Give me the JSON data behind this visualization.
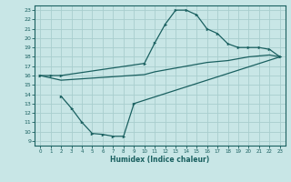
{
  "title": "",
  "xlabel": "Humidex (Indice chaleur)",
  "bg_color": "#c8e6e6",
  "grid_color": "#a8cece",
  "line_color": "#1a6060",
  "xlim": [
    -0.5,
    23.5
  ],
  "ylim": [
    8.5,
    23.5
  ],
  "xticks": [
    0,
    1,
    2,
    3,
    4,
    5,
    6,
    7,
    8,
    9,
    10,
    11,
    12,
    13,
    14,
    15,
    16,
    17,
    18,
    19,
    20,
    21,
    22,
    23
  ],
  "yticks": [
    9,
    10,
    11,
    12,
    13,
    14,
    15,
    16,
    17,
    18,
    19,
    20,
    21,
    22,
    23
  ],
  "curve_top_x": [
    0,
    1,
    2,
    10,
    11,
    12,
    13,
    14,
    15,
    16,
    17,
    18,
    19,
    20,
    21,
    22,
    23
  ],
  "curve_top_y": [
    16.0,
    16.0,
    16.0,
    17.3,
    19.5,
    21.5,
    23.0,
    23.0,
    22.5,
    21.0,
    20.5,
    19.4,
    19.0,
    19.0,
    19.0,
    18.8,
    18.0
  ],
  "curve_bot_x": [
    2,
    3,
    4,
    5,
    6,
    7,
    8,
    9,
    23
  ],
  "curve_bot_y": [
    13.8,
    12.5,
    11.0,
    9.8,
    9.7,
    9.5,
    9.5,
    13.0,
    18.0
  ],
  "curve_mid_x": [
    0,
    2,
    10,
    11,
    12,
    13,
    14,
    15,
    16,
    17,
    18,
    19,
    20,
    21,
    22,
    23
  ],
  "curve_mid_y": [
    16.0,
    15.5,
    16.1,
    16.4,
    16.6,
    16.8,
    17.0,
    17.2,
    17.4,
    17.5,
    17.6,
    17.8,
    18.0,
    18.1,
    18.2,
    18.0
  ]
}
